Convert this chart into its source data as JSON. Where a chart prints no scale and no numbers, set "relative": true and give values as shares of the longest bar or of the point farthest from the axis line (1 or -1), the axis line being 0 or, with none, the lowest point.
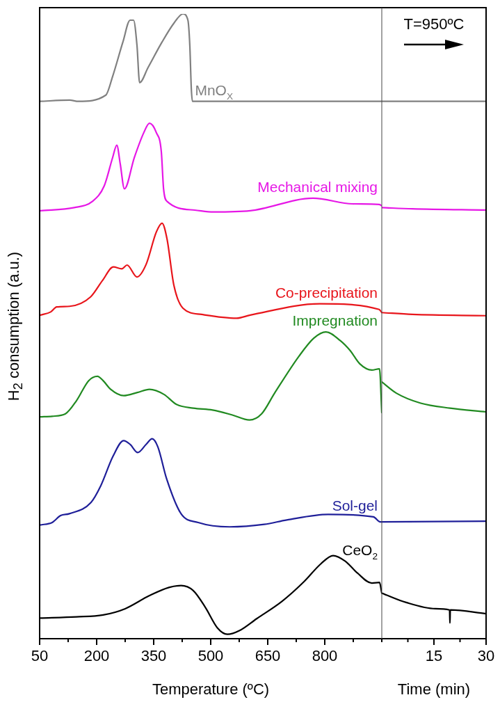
{
  "chart_data": {
    "type": "line",
    "xlabel": "Temperature (ºC)",
    "x2label": "Time (min)",
    "ylabel": "H$_{2}$ consumption (a.u.)",
    "relative": true,
    "tick_labels": "x",
    "marker": "none",
    "line_style": "solid",
    "annotations": [
      "T=950ºC"
    ],
    "xlim": [
      50,
      950
    ],
    "xticks": [
      50,
      {
        "value": 125,
        "label": null
      },
      200,
      {
        "value": 275,
        "label": null
      },
      350,
      {
        "value": 425,
        "label": null
      },
      500,
      {
        "value": 575,
        "label": null
      },
      650,
      {
        "value": 725,
        "label": null
      },
      800,
      {
        "value": 875,
        "label": null
      }
    ],
    "x2lim": [
      0,
      30
    ],
    "x2ticks": [
      {
        "value": 0,
        "label": null
      },
      {
        "value": 7.5,
        "label": null
      },
      15,
      {
        "value": 22.5,
        "label": null
      },
      30
    ],
    "series": [
      {
        "name": "MnO$_{X}$",
        "color": "#808080",
        "x": [
          50,
          129,
          152,
          224,
          242,
          269,
          288,
          297,
          306,
          313,
          335,
          372,
          403,
          427,
          440,
          445,
          449,
          452,
          950
        ],
        "values": [
          0.86,
          0.862,
          0.86,
          0.87,
          0.9,
          0.955,
          0.99,
          0.99,
          0.95,
          0.89,
          0.914,
          0.955,
          0.985,
          1.0,
          0.99,
          0.95,
          0.88,
          0.86,
          0.86
        ]
      },
      {
        "name": "Mechanical mixing",
        "color": "#e617e6",
        "x": [
          52,
          141,
          189,
          220,
          242,
          253,
          262,
          273,
          299,
          324,
          339,
          357,
          370,
          376,
          385,
          458,
          507,
          604,
          769,
          873,
          943,
          950
        ],
        "values": [
          0.685,
          0.69,
          0.7,
          0.725,
          0.77,
          0.79,
          0.76,
          0.72,
          0.77,
          0.81,
          0.825,
          0.81,
          0.78,
          0.72,
          0.7,
          0.686,
          0.683,
          0.685,
          0.705,
          0.696,
          0.695,
          0.693
        ]
      },
      {
        "name": "Co-precipitation",
        "color": "#e8151b",
        "x": [
          52,
          79,
          95,
          129,
          184,
          215,
          244,
          266,
          280,
          306,
          330,
          357,
          372,
          385,
          403,
          427,
          476,
          568,
          604,
          787,
          943,
          950
        ],
        "values": [
          0.518,
          0.523,
          0.531,
          0.532,
          0.547,
          0.573,
          0.595,
          0.592,
          0.598,
          0.579,
          0.599,
          0.651,
          0.665,
          0.64,
          0.566,
          0.529,
          0.519,
          0.513,
          0.518,
          0.536,
          0.527,
          0.522
        ]
      },
      {
        "name": "Impregnation",
        "color": "#218a21",
        "x": [
          51,
          83,
          118,
          147,
          179,
          202,
          217,
          237,
          271,
          307,
          339,
          377,
          410,
          454,
          505,
          557,
          602,
          634,
          668,
          732,
          771,
          803,
          841,
          867,
          892,
          924,
          944,
          950
        ],
        "values": [
          0.355,
          0.356,
          0.36,
          0.381,
          0.413,
          0.42,
          0.413,
          0.399,
          0.389,
          0.394,
          0.399,
          0.391,
          0.375,
          0.369,
          0.366,
          0.358,
          0.35,
          0.36,
          0.393,
          0.452,
          0.481,
          0.491,
          0.477,
          0.461,
          0.44,
          0.43,
          0.432,
          0.362
        ]
      },
      {
        "name": "Sol-gel",
        "color": "#1f1f99",
        "x": [
          51,
          83,
          105,
          128,
          185,
          211,
          243,
          271,
          288,
          308,
          330,
          346,
          361,
          384,
          422,
          467,
          550,
          641,
          700,
          809,
          928,
          946,
          950
        ],
        "values": [
          0.182,
          0.186,
          0.197,
          0.2,
          0.218,
          0.245,
          0.292,
          0.317,
          0.311,
          0.298,
          0.311,
          0.32,
          0.307,
          0.256,
          0.2,
          0.186,
          0.179,
          0.183,
          0.19,
          0.199,
          0.195,
          0.187,
          0.187
        ]
      },
      {
        "name": "CeO$_{2}$",
        "color": "#000000",
        "x": [
          51,
          147,
          217,
          275,
          339,
          390,
          422,
          454,
          486,
          518,
          544,
          576,
          621,
          688,
          745,
          790,
          822,
          854,
          886,
          924,
          944,
          950
        ],
        "values": [
          0.033,
          0.035,
          0.038,
          0.048,
          0.069,
          0.082,
          0.085,
          0.077,
          0.05,
          0.017,
          0.007,
          0.013,
          0.032,
          0.06,
          0.091,
          0.12,
          0.133,
          0.124,
          0.105,
          0.089,
          0.09,
          0.073
        ]
      },
      {
        "axis": "x2",
        "color": "#808080",
        "x": [
          0,
          30
        ],
        "values": [
          0.86,
          0.86
        ]
      },
      {
        "axis": "x2",
        "color": "#e617e6",
        "x": [
          0,
          8.8,
          30
        ],
        "values": [
          0.69,
          0.688,
          0.686
        ]
      },
      {
        "axis": "x2",
        "color": "#e8151b",
        "x": [
          0,
          8.8,
          30
        ],
        "values": [
          0.522,
          0.519,
          0.517
        ]
      },
      {
        "axis": "x2",
        "color": "#218a21",
        "x": [
          0,
          4.2,
          11.2,
          19.6,
          30
        ],
        "values": [
          0.411,
          0.393,
          0.377,
          0.369,
          0.363
        ]
      },
      {
        "axis": "x2",
        "color": "#1f1f99",
        "x": [
          0,
          30
        ],
        "values": [
          0.187,
          0.188
        ]
      },
      {
        "axis": "x2",
        "color": "#000000",
        "x": [
          0,
          7,
          15.4,
          19.5,
          19.6,
          19.7,
          30
        ],
        "values": [
          0.073,
          0.058,
          0.048,
          0.046,
          0.025,
          0.046,
          0.04
        ]
      }
    ]
  }
}
